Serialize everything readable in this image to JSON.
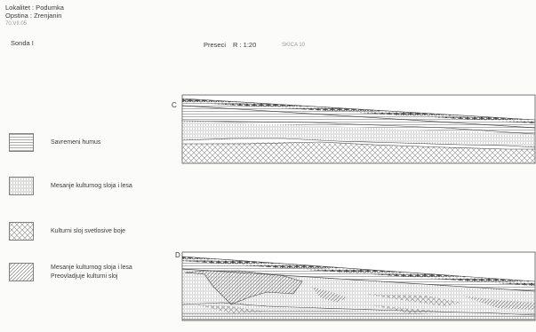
{
  "header": {
    "lokalitet": "Lokalitet : Podumka",
    "opstina": "Opstina : Zrenjanin",
    "date": "70.VII.05",
    "sonda": "Sonda I",
    "preseci": "Preseci",
    "scale": "R : 1:20",
    "skica": "SKICA 10"
  },
  "sections": [
    {
      "letter": "C"
    },
    {
      "letter": "D"
    }
  ],
  "legend": [
    {
      "pattern": "horizontal-lines",
      "line1": "Savremeni humus",
      "line2": ""
    },
    {
      "pattern": "lines-dots",
      "line1": "Mesanje kulturnog sloja i lesa",
      "line2": ""
    },
    {
      "pattern": "crosshatch",
      "line1": "Kulturni sloj svetlosive boje",
      "line2": ""
    },
    {
      "pattern": "diagonal",
      "line1": "Mesanje kulturnog sloja i lesa",
      "line2": "Preovladjuje kulturni sloj"
    }
  ]
}
